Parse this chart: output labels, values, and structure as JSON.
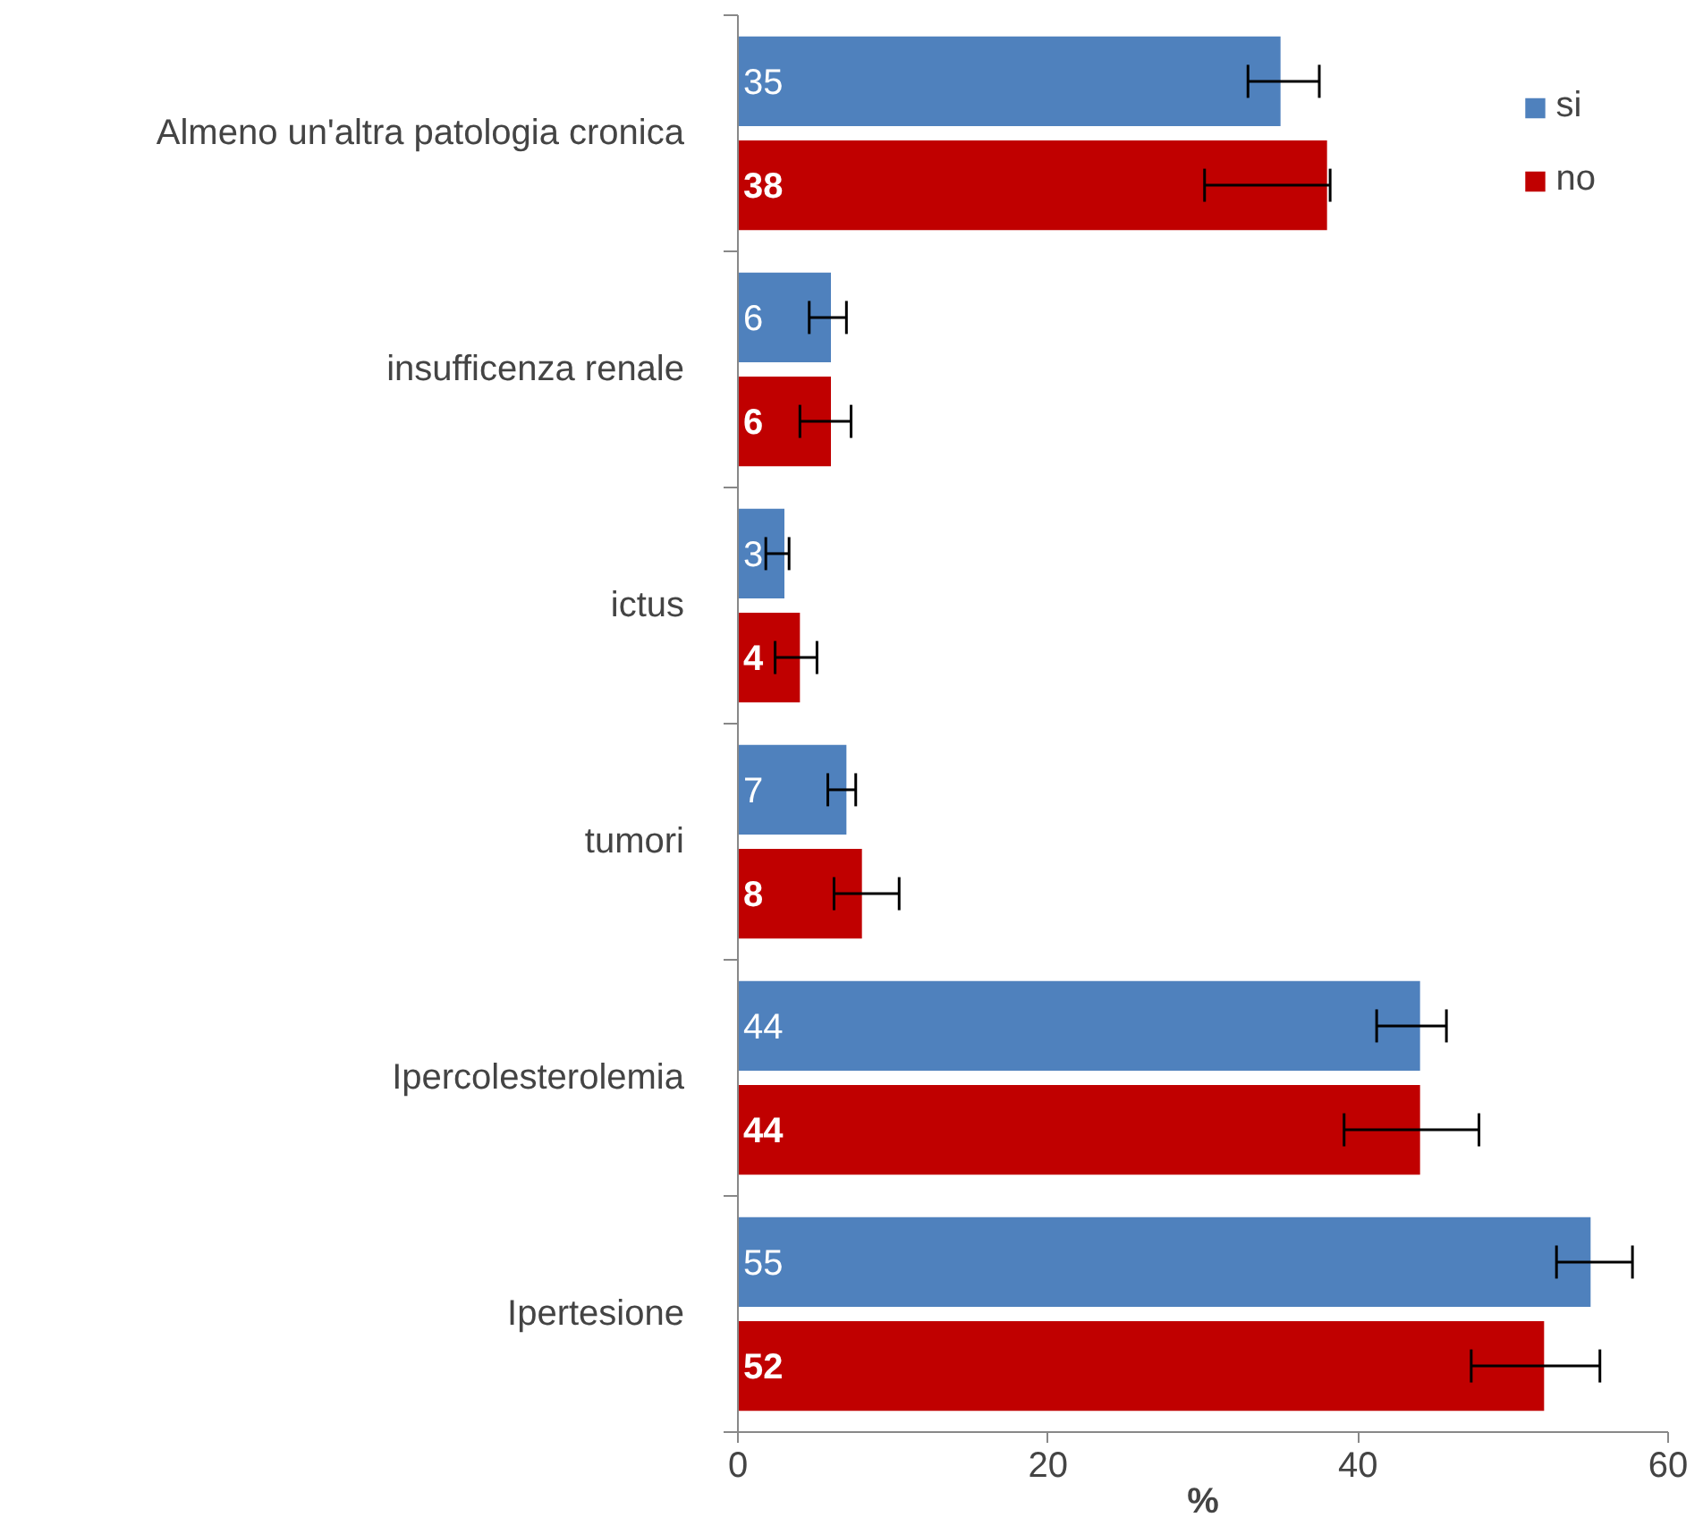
{
  "chart_data": {
    "type": "bar",
    "orientation": "horizontal",
    "xlabel": "%",
    "categories": [
      "Almeno un'altra patologia cronica",
      "insufficenza renale",
      "ictus",
      "tumori",
      "Ipercolesterolemia",
      "Ipertesione"
    ],
    "series": [
      {
        "name": "si",
        "color": "#4f81bd",
        "values": [
          35,
          6,
          3,
          7,
          44,
          55
        ],
        "errors": [
          [
            32.9,
            37.5
          ],
          [
            4.6,
            7.0
          ],
          [
            1.8,
            3.3
          ],
          [
            5.8,
            7.6
          ],
          [
            41.2,
            45.7
          ],
          [
            52.8,
            57.7
          ]
        ]
      },
      {
        "name": "no",
        "color": "#c00000",
        "values": [
          38,
          6,
          4,
          8,
          44,
          52
        ],
        "errors": [
          [
            30.1,
            38.2
          ],
          [
            4.0,
            7.3
          ],
          [
            2.4,
            5.1
          ],
          [
            6.2,
            10.4
          ],
          [
            39.1,
            47.8
          ],
          [
            47.3,
            55.6
          ]
        ]
      }
    ],
    "xlim": [
      0,
      60
    ],
    "xticks": [
      0,
      20,
      40,
      60
    ],
    "grid": false,
    "legend": "top right",
    "data_labels": true
  }
}
